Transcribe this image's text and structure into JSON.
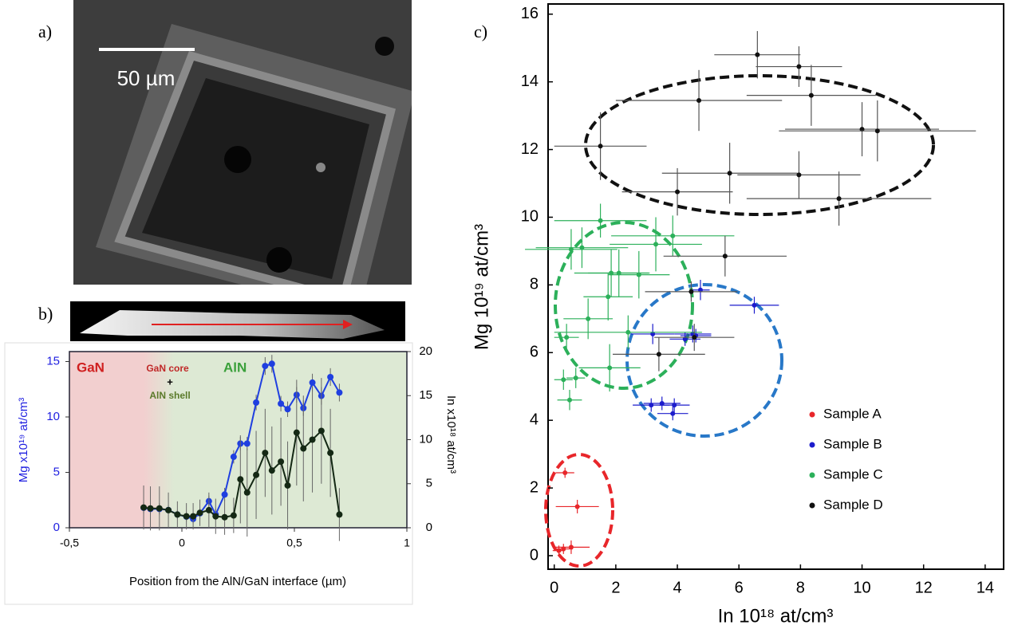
{
  "figure": {
    "panel_labels": [
      "a)",
      "b)",
      "c)"
    ],
    "scale_bar": "50 µm"
  },
  "chart_data": [
    {
      "type": "line",
      "xlabel": "Position from the AlN/GaN interface (µm)",
      "ylabel": "Mg x10¹⁹ at/cm³",
      "ylabel_color": "#1f1fe0",
      "y2label": "In x10¹⁸ at/cm³",
      "annotations": [
        "GaN",
        "GaN core",
        "+",
        "AlN shell",
        "AlN"
      ],
      "xlim": [
        -0.5,
        1
      ],
      "xticks": [
        {
          "value": -0.5,
          "label": "-0,5"
        },
        0,
        {
          "value": 0.5,
          "label": "0,5"
        },
        1
      ],
      "ylim": [
        0,
        15.9
      ],
      "yticks": [
        0,
        5,
        10,
        15
      ],
      "y2lim": [
        0,
        20
      ],
      "y2ticks": [
        0,
        5,
        10,
        15,
        20
      ],
      "x": [
        -0.17,
        -0.14,
        -0.1,
        -0.06,
        -0.02,
        0.02,
        0.05,
        0.08,
        0.12,
        0.15,
        0.19,
        0.23,
        0.26,
        0.29,
        0.33,
        0.37,
        0.4,
        0.44,
        0.47,
        0.51,
        0.54,
        0.58,
        0.62,
        0.66,
        0.7
      ],
      "series": [
        {
          "color": "#1f3fe0",
          "axis": "y",
          "values": [
            1.8,
            1.7,
            1.7,
            1.6,
            1.2,
            1.0,
            0.8,
            1.3,
            2.4,
            1.2,
            3.0,
            6.4,
            7.6,
            7.6,
            11.3,
            14.6,
            14.8,
            11.2,
            10.7,
            12.0,
            10.8,
            13.1,
            11.9,
            13.6,
            12.2
          ],
          "errors": [
            0.5,
            0.5,
            0.5,
            0.4,
            0.4,
            0.4,
            0.4,
            0.5,
            0.5,
            0.5,
            0.6,
            0.6,
            0.6,
            0.6,
            0.7,
            0.8,
            0.8,
            0.7,
            0.7,
            0.7,
            0.7,
            0.8,
            0.8,
            0.8,
            0.8
          ]
        },
        {
          "color": "#142814",
          "axis": "y2",
          "values": [
            2.3,
            2.2,
            2.2,
            2.0,
            1.5,
            1.3,
            1.3,
            1.7,
            2.0,
            1.3,
            1.2,
            1.4,
            5.5,
            4.0,
            6.0,
            8.5,
            6.5,
            7.5,
            4.8,
            10.8,
            9.0,
            10.0,
            11.0,
            8.5,
            1.5
          ],
          "errors": [
            2.5,
            2.5,
            2.5,
            2.0,
            1.5,
            1.5,
            1.5,
            1.5,
            2.0,
            2.0,
            2.0,
            2.0,
            5.0,
            5.0,
            5.0,
            5.0,
            5.0,
            5.0,
            5.0,
            6.0,
            6.0,
            6.0,
            6.0,
            5.0,
            3.0
          ]
        }
      ]
    },
    {
      "type": "scatter",
      "xlabel": "In 10¹⁸ at/cm³",
      "ylabel": "Mg 10¹⁹ at/cm³",
      "xlim": [
        -0.2,
        14.6
      ],
      "xticks": [
        0,
        2,
        4,
        6,
        8,
        10,
        12,
        14
      ],
      "ylim": [
        -0.4,
        16.3
      ],
      "yticks": [
        0,
        2,
        4,
        6,
        8,
        10,
        12,
        14,
        16
      ],
      "legend": "lower right",
      "series": [
        {
          "name": "Sample A",
          "color": "#e8262a",
          "x": [
            0.35,
            0.75,
            0.15,
            0.3,
            0.55
          ],
          "y": [
            2.45,
            1.45,
            0.15,
            0.2,
            0.25
          ],
          "xerr": [
            0.3,
            0.7,
            0.2,
            0.3,
            0.6
          ],
          "yerr": [
            0.15,
            0.2,
            0.15,
            0.15,
            0.2
          ]
        },
        {
          "name": "Sample B",
          "color": "#1c1ccc",
          "x": [
            6.5,
            4.75,
            4.5,
            4.25,
            4.6,
            3.2,
            3.15,
            3.5,
            3.9,
            3.85
          ],
          "y": [
            7.4,
            7.85,
            6.55,
            6.4,
            6.5,
            6.55,
            4.45,
            4.5,
            4.45,
            4.2
          ],
          "xerr": [
            0.8,
            0.3,
            0.6,
            0.5,
            0.5,
            0.7,
            0.6,
            0.6,
            0.5,
            0.5
          ],
          "yerr": [
            0.25,
            0.3,
            0.25,
            0.2,
            0.2,
            0.3,
            0.2,
            0.2,
            0.2,
            0.2
          ]
        },
        {
          "name": "Sample C",
          "color": "#2cb05a",
          "x": [
            1.5,
            0.55,
            0.9,
            3.3,
            3.85,
            1.85,
            2.1,
            2.75,
            1.75,
            1.1,
            0.4,
            2.4,
            1.8,
            0.3,
            0.7,
            0.5
          ],
          "y": [
            9.9,
            9.05,
            9.1,
            9.2,
            9.45,
            8.35,
            8.35,
            8.3,
            7.65,
            7.0,
            6.45,
            6.6,
            5.55,
            5.2,
            5.25,
            4.6
          ],
          "xerr": [
            1.5,
            1.5,
            1.5,
            1.5,
            2.0,
            1.2,
            1.0,
            1.0,
            0.8,
            0.8,
            0.4,
            2.4,
            1.0,
            0.3,
            0.3,
            0.4
          ],
          "yerr": [
            0.5,
            0.6,
            0.6,
            0.8,
            0.6,
            0.7,
            0.7,
            0.7,
            0.7,
            0.6,
            0.4,
            0.5,
            0.7,
            0.3,
            0.3,
            0.3
          ]
        },
        {
          "name": "Sample D",
          "color": "#111111",
          "x": [
            6.6,
            7.95,
            8.35,
            4.7,
            1.5,
            10.0,
            10.5,
            5.7,
            7.95,
            4.0,
            9.25,
            5.55,
            4.45,
            3.4,
            4.55
          ],
          "y": [
            14.8,
            14.45,
            13.6,
            13.45,
            12.1,
            12.6,
            12.55,
            11.3,
            11.25,
            10.75,
            10.55,
            8.85,
            7.8,
            5.95,
            6.45
          ],
          "xerr": [
            1.4,
            1.4,
            2.1,
            2.7,
            1.5,
            2.5,
            3.2,
            2.2,
            2.0,
            1.8,
            3.0,
            2.0,
            1.5,
            1.5,
            1.3
          ],
          "yerr": [
            0.7,
            0.6,
            0.9,
            0.9,
            1.0,
            0.8,
            0.9,
            0.9,
            0.7,
            0.7,
            0.8,
            0.6,
            0.3,
            0.5,
            0.4
          ]
        }
      ]
    }
  ]
}
